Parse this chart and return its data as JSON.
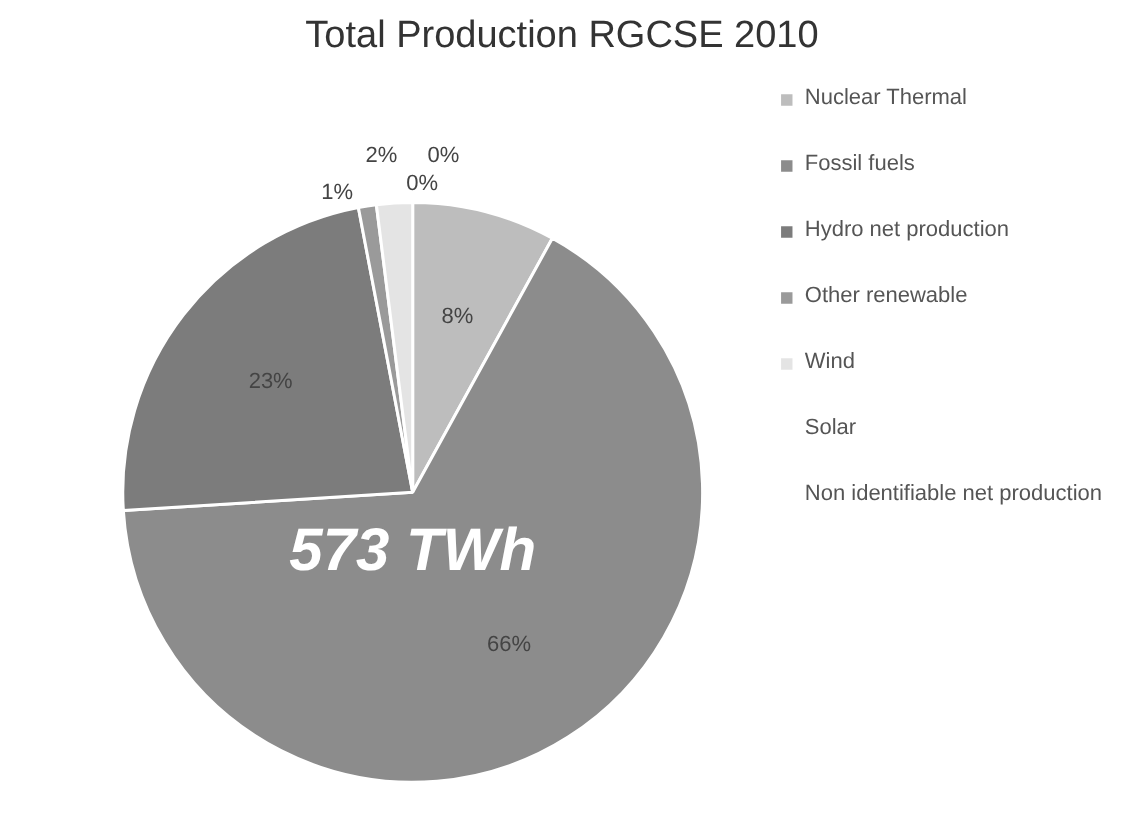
{
  "chart_data": {
    "type": "pie",
    "title": "Total Production RGCSE 2010",
    "categories": [
      "Nuclear Thermal",
      "Fossil fuels",
      "Hydro net production",
      "Other renewable",
      "Wind",
      "Solar",
      "Non identifiable net production"
    ],
    "values": [
      8,
      66,
      23,
      1,
      2,
      0,
      0
    ],
    "value_labels": [
      "8%",
      "66%",
      "23%",
      "1%",
      "2%",
      "0%",
      "0%"
    ],
    "colors": [
      "#bdbdbd",
      "#8c8c8c",
      "#7c7c7c",
      "#9a9a9a",
      "#e4e4e4",
      "#f4f4f4",
      "#d2d2d2"
    ],
    "annotations": [
      "573 TWh"
    ],
    "legend": "right"
  }
}
